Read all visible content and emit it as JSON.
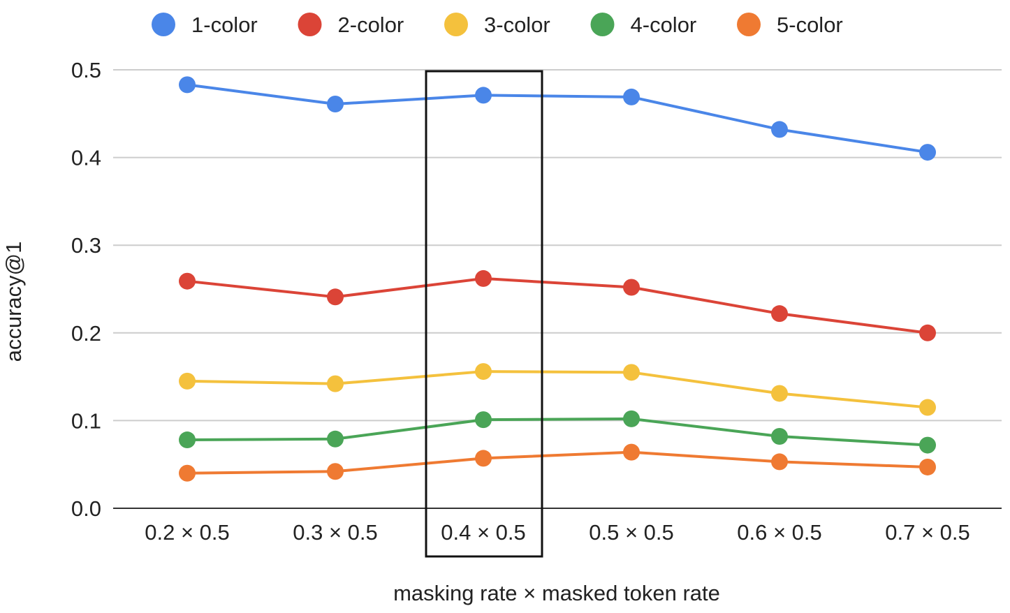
{
  "chart_data": {
    "type": "line",
    "title": "",
    "xlabel": "masking rate × masked token rate",
    "ylabel": "accuracy@1",
    "categories": [
      "0.2 × 0.5",
      "0.3 × 0.5",
      "0.4 × 0.5",
      "0.5 × 0.5",
      "0.6 × 0.5",
      "0.7 × 0.5"
    ],
    "ylim": [
      0,
      0.5
    ],
    "yticks": [
      "0.0",
      "0.1",
      "0.2",
      "0.3",
      "0.4",
      "0.5"
    ],
    "grid": true,
    "legend_position": "top",
    "highlight_category": "0.4 × 0.5",
    "series": [
      {
        "name": "1-color",
        "color": "#4a86e8",
        "values": [
          0.483,
          0.461,
          0.471,
          0.469,
          0.432,
          0.406
        ]
      },
      {
        "name": "2-color",
        "color": "#db4437",
        "values": [
          0.259,
          0.241,
          0.262,
          0.252,
          0.222,
          0.2
        ]
      },
      {
        "name": "3-color",
        "color": "#f4c13d",
        "values": [
          0.145,
          0.142,
          0.156,
          0.155,
          0.131,
          0.115
        ]
      },
      {
        "name": "4-color",
        "color": "#4aa557",
        "values": [
          0.078,
          0.079,
          0.101,
          0.102,
          0.082,
          0.072
        ]
      },
      {
        "name": "5-color",
        "color": "#ef7a32",
        "values": [
          0.04,
          0.042,
          0.057,
          0.064,
          0.053,
          0.047
        ]
      }
    ]
  }
}
